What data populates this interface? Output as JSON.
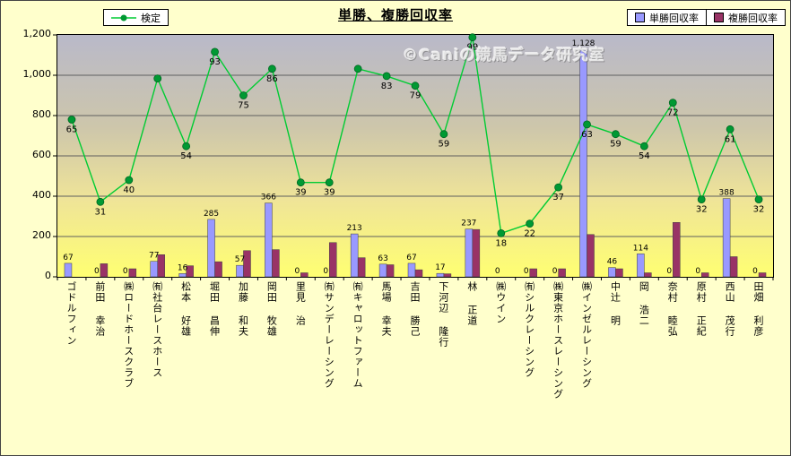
{
  "title": "単勝、複勝回収率",
  "watermark": "©Caniの競馬データ研究室",
  "legend": {
    "line_label": "検定",
    "bar1_label": "単勝回収率",
    "bar2_label": "複勝回収率"
  },
  "colors": {
    "bar1": "#9999ff",
    "bar2": "#993366",
    "line": "#00cc33",
    "marker": "#009933",
    "canvas_bg": "#ffffcc",
    "plot_gradient_top": "#b9b9c9",
    "plot_gradient_bottom": "#ffff72"
  },
  "y_axis_ticks": [
    "1,200",
    "1,000",
    "800",
    "600",
    "400",
    "200",
    "0"
  ],
  "chart_data": {
    "type": "bar",
    "title": "単勝、複勝回収率",
    "xlabel": "",
    "ylabel": "",
    "ylim": [
      0,
      1200
    ],
    "secondary_ylim": [
      0,
      100
    ],
    "grid": true,
    "legend_position": "top",
    "categories": [
      "ゴドルフィン",
      "前田 幸治",
      "㈱ロードホースクラブ",
      "㈲社台レースホース",
      "松本 好雄",
      "堀田 昌伸",
      "加藤 和夫",
      "岡田 牧雄",
      "里見 治",
      "㈲サンデーレーシング",
      "㈲キャロットファーム",
      "馬場 幸夫",
      "吉田 勝己",
      "下河辺 隆行",
      "林 正道",
      "㈱ウイン",
      "㈲シルクレーシング",
      "㈱東京ホースレーシング",
      "㈱インゼルレーシング",
      "中辻 明",
      "岡 浩二",
      "奈村 睦弘",
      "原村 正紀",
      "西山 茂行",
      "田畑 利彦"
    ],
    "series": [
      {
        "name": "単勝回収率",
        "type": "bar",
        "color": "#9999ff",
        "values": [
          67,
          0,
          0,
          77,
          16,
          285,
          57,
          366,
          0,
          0,
          213,
          63,
          67,
          17,
          237,
          0,
          0,
          0,
          1128,
          46,
          114,
          0,
          0,
          388,
          0
        ],
        "labels": [
          "67",
          "0",
          "0",
          "77",
          "16",
          "285",
          "57",
          "366",
          "0",
          "0",
          "213",
          "63",
          "67",
          "17",
          "237",
          "0",
          "0",
          "0",
          "1,128",
          "46",
          "114",
          "0",
          "0",
          "388",
          "0"
        ]
      },
      {
        "name": "複勝回収率",
        "type": "bar",
        "color": "#993366",
        "values": [
          0,
          65,
          40,
          110,
          55,
          75,
          130,
          135,
          20,
          170,
          95,
          60,
          35,
          15,
          235,
          0,
          40,
          40,
          210,
          40,
          20,
          270,
          20,
          100,
          20
        ],
        "labels": null
      },
      {
        "name": "検定",
        "type": "line",
        "axis": "secondary",
        "color": "#00cc33",
        "marker_color": "#009933",
        "values": [
          65,
          31,
          40,
          82,
          54,
          93,
          75,
          86,
          39,
          39,
          86,
          83,
          79,
          59,
          99,
          18,
          22,
          37,
          63,
          59,
          54,
          72,
          32,
          61,
          32
        ],
        "labels": [
          "65",
          "31",
          "40",
          "",
          "54",
          "93",
          "75",
          "86",
          "39",
          "39",
          "",
          "83",
          "79",
          "59",
          "99",
          "18",
          "22",
          "37",
          "63",
          "59",
          "54",
          "72",
          "32",
          "61",
          "32"
        ]
      }
    ]
  }
}
